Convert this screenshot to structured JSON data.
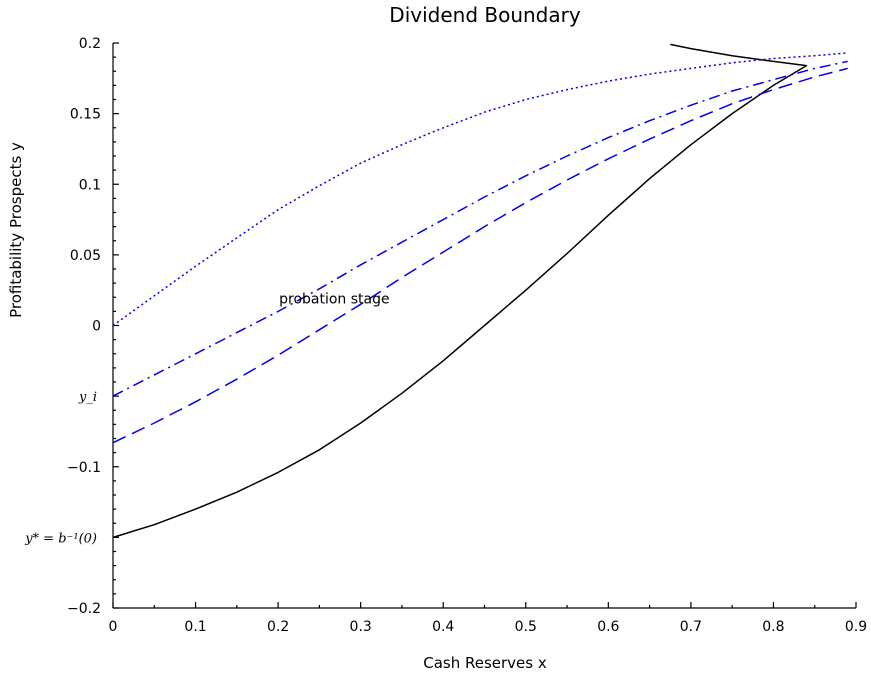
{
  "chart_data": {
    "type": "line",
    "title": "Dividend Boundary",
    "xlabel": "Cash Reserves x",
    "ylabel": "Profitability Prospects y",
    "xlim": [
      0,
      0.9
    ],
    "ylim": [
      -0.2,
      0.2
    ],
    "x_ticks": [
      0,
      0.1,
      0.2,
      0.3,
      0.4,
      0.5,
      0.6,
      0.7,
      0.8,
      0.9
    ],
    "x_tick_labels": [
      "0",
      "0.1",
      "0.2",
      "0.3",
      "0.4",
      "0.5",
      "0.6",
      "0.7",
      "0.8",
      "0.9"
    ],
    "y_ticks": [
      -0.2,
      -0.1,
      0,
      0.05,
      0.1,
      0.15,
      0.2
    ],
    "y_tick_labels": [
      "−0.2",
      "−0.1",
      "0",
      "0.05",
      "0.1",
      "0.15",
      "0.2"
    ],
    "special_y_labels": [
      {
        "y": -0.05,
        "text": "y_i"
      },
      {
        "y": -0.15,
        "text": "y* = b⁻¹(0)"
      }
    ],
    "annotations": [
      {
        "text": "probation stage",
        "x": 0.2,
        "y": 0.019
      }
    ],
    "grid": false,
    "series": [
      {
        "style": "solid",
        "color": "#000000",
        "x": [
          0,
          0.05,
          0.1,
          0.15,
          0.2,
          0.25,
          0.3,
          0.35,
          0.4,
          0.45,
          0.5,
          0.55,
          0.6,
          0.65,
          0.7,
          0.75,
          0.8,
          0.84,
          0.8,
          0.75,
          0.7,
          0.675
        ],
        "y": [
          -0.15,
          -0.141,
          -0.13,
          -0.118,
          -0.104,
          -0.088,
          -0.069,
          -0.048,
          -0.025,
          0.0,
          0.025,
          0.051,
          0.078,
          0.104,
          0.128,
          0.15,
          0.17,
          0.184,
          0.187,
          0.191,
          0.196,
          0.199
        ]
      },
      {
        "style": "dashed",
        "color": "#0000ee",
        "x": [
          0,
          0.05,
          0.1,
          0.15,
          0.2,
          0.25,
          0.3,
          0.35,
          0.4,
          0.45,
          0.5,
          0.55,
          0.6,
          0.65,
          0.7,
          0.75,
          0.8,
          0.85,
          0.89
        ],
        "y": [
          -0.083,
          -0.069,
          -0.054,
          -0.038,
          -0.021,
          -0.003,
          0.015,
          0.034,
          0.052,
          0.07,
          0.087,
          0.103,
          0.118,
          0.132,
          0.145,
          0.157,
          0.167,
          0.176,
          0.182
        ]
      },
      {
        "style": "dashdot",
        "color": "#0000ee",
        "x": [
          0,
          0.05,
          0.1,
          0.15,
          0.2,
          0.25,
          0.3,
          0.35,
          0.4,
          0.45,
          0.5,
          0.55,
          0.6,
          0.65,
          0.7,
          0.75,
          0.8,
          0.85,
          0.89
        ],
        "y": [
          -0.05,
          -0.035,
          -0.02,
          -0.005,
          0.01,
          0.026,
          0.043,
          0.059,
          0.075,
          0.091,
          0.106,
          0.12,
          0.133,
          0.145,
          0.156,
          0.166,
          0.174,
          0.182,
          0.187
        ]
      },
      {
        "style": "dotted",
        "color": "#0000ee",
        "x": [
          0,
          0.05,
          0.1,
          0.15,
          0.2,
          0.25,
          0.3,
          0.35,
          0.4,
          0.45,
          0.5,
          0.55,
          0.6,
          0.65,
          0.7,
          0.75,
          0.8,
          0.85,
          0.89
        ],
        "y": [
          0.0,
          0.021,
          0.042,
          0.062,
          0.082,
          0.099,
          0.115,
          0.128,
          0.14,
          0.151,
          0.16,
          0.167,
          0.173,
          0.178,
          0.182,
          0.186,
          0.189,
          0.191,
          0.193
        ]
      }
    ]
  }
}
